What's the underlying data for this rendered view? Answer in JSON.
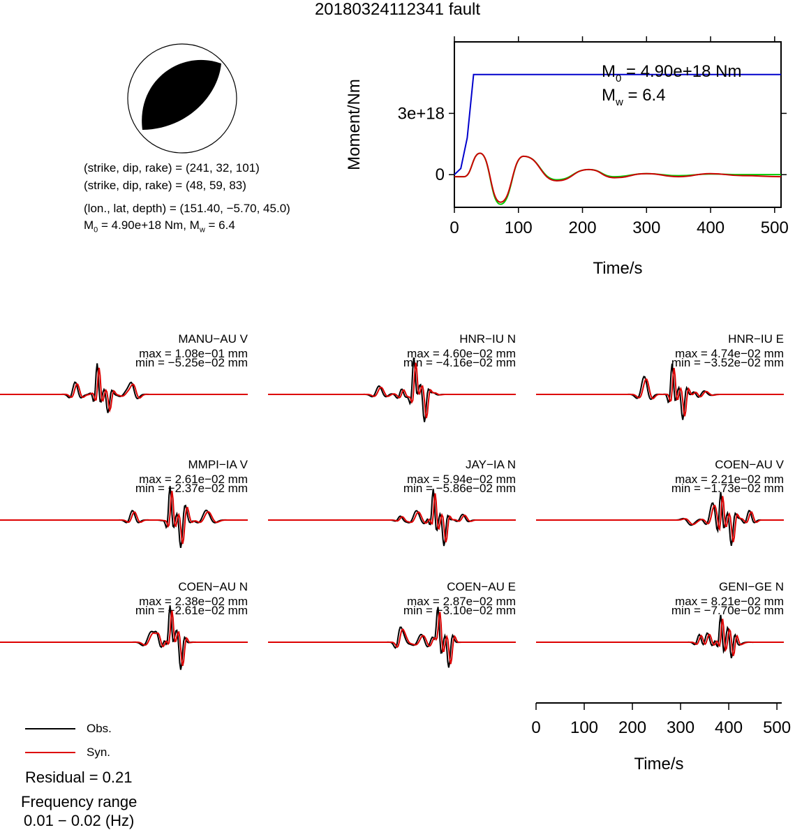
{
  "title": "20180324112341 fault",
  "mechanism": {
    "planes": [
      "(strike, dip, rake) = (241, 32, 101)",
      "(strike, dip, rake) = (48, 59, 83)"
    ],
    "location": "(lon., lat, depth) = (151.40, −5.70, 45.0)",
    "moment_prefix": "M",
    "moment_sub": "0",
    "moment_value": " = 4.90e+18 Nm, M",
    "mw_sub": "w",
    "mw_value": " = 6.4"
  },
  "stf_panel": {
    "ylabel": "Moment/Nm",
    "xlabel": "Time/s",
    "yticks": [
      "3e+18",
      "0"
    ],
    "xticks": [
      "0",
      "100",
      "200",
      "300",
      "400",
      "500"
    ],
    "annot_m0_prefix": "M",
    "annot_m0_sub": "0",
    "annot_m0_value": " = 4.90e+18 Nm",
    "annot_mw_prefix": "M",
    "annot_mw_sub": "w",
    "annot_mw_value": " = 6.4"
  },
  "waveform_axis": {
    "xlabel": "Time/s",
    "xticks": [
      "0",
      "100",
      "200",
      "300",
      "400",
      "500"
    ]
  },
  "legend": {
    "obs": "Obs.",
    "syn": "Syn.",
    "residual": "Residual = 0.21",
    "freq_title": "Frequency range",
    "freq_range": "0.01 − 0.02 (Hz)"
  },
  "colors": {
    "observed": "#000000",
    "synthetic": "#dd0000",
    "cumulative_moment": "#0000cc",
    "moment_rate_green": "#00cc00",
    "moment_rate_red": "#cc0000"
  },
  "chart_data": [
    {
      "type": "line",
      "title": "",
      "xlabel": "Time/s",
      "ylabel": "Moment/Nm",
      "xlim": [
        0,
        510
      ],
      "ylim": [
        -1.6e+18,
        6.5e+18
      ],
      "series": [
        {
          "x": [
            0,
            10,
            20,
            30,
            510
          ],
          "y": [
            0,
            3e+17,
            1.8e+18,
            4.9e+18,
            4.9e+18
          ]
        },
        {
          "x": [
            0,
            15,
            40,
            72,
            108,
            160,
            210,
            250,
            300,
            350,
            400,
            450,
            510
          ],
          "y": [
            -1e+17,
            -1e+17,
            1.05e+18,
            -1.45e+18,
            9e+17,
            -2.5e+17,
            2.5e+17,
            -1e+17,
            5e+16,
            -5e+16,
            3e+16,
            0,
            0
          ]
        },
        {
          "x": [
            0,
            15,
            40,
            72,
            108,
            160,
            210,
            250,
            300,
            350,
            400,
            450,
            510
          ],
          "y": [
            -1e+17,
            -1e+17,
            1.05e+18,
            -1.35e+18,
            9e+17,
            -3e+17,
            2.5e+17,
            -1.5e+17,
            5e+16,
            -1e+17,
            5e+16,
            -5e+16,
            -1e+17
          ]
        }
      ]
    },
    {
      "type": "line",
      "title": "",
      "xlabel": "Time/s",
      "xlim": [
        0,
        510
      ],
      "panels": [
        {
          "station": "MANU−AU V",
          "max": "max = 1.08e−01 mm",
          "min": "min = −5.25e−02 mm",
          "peak_time": 200,
          "peak_amp": 0.108
        },
        {
          "station": "HNR−IU N",
          "max": "max = 4.60e−02 mm",
          "min": "min = −4.16e−02 mm",
          "peak_time": 300,
          "peak_amp": 0.046
        },
        {
          "station": "HNR−IU E",
          "max": "max = 4.74e−02 mm",
          "min": "min = −3.52e−02 mm",
          "peak_time": 280,
          "peak_amp": 0.0474
        },
        {
          "station": "MMPI−IA V",
          "max": "max = 2.61e−02 mm",
          "min": "min = −2.37e−02 mm",
          "peak_time": 350,
          "peak_amp": 0.0261
        },
        {
          "station": "JAY−IA N",
          "max": "max = 5.94e−02 mm",
          "min": "min = −5.86e−02 mm",
          "peak_time": 340,
          "peak_amp": 0.0594
        },
        {
          "station": "COEN−AU V",
          "max": "max = 2.21e−02 mm",
          "min": "min = −1.73e−02 mm",
          "peak_time": 380,
          "peak_amp": 0.0221
        },
        {
          "station": "COEN−AU N",
          "max": "max = 2.38e−02 mm",
          "min": "min = −2.61e−02 mm",
          "peak_time": 350,
          "peak_amp": 0.0238
        },
        {
          "station": "COEN−AU E",
          "max": "max = 2.87e−02 mm",
          "min": "min = −3.10e−02 mm",
          "peak_time": 350,
          "peak_amp": 0.0287
        },
        {
          "station": "GENI−GE N",
          "max": "max = 8.21e−02 mm",
          "min": "min = −7.70e−02 mm",
          "peak_time": 380,
          "peak_amp": 0.0821
        }
      ]
    }
  ]
}
